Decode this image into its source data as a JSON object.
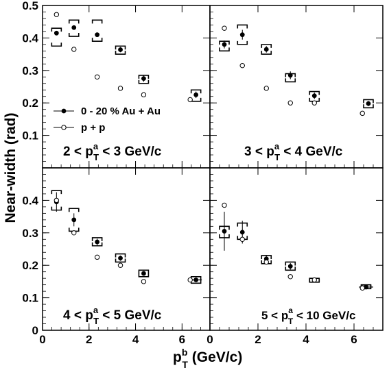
{
  "chart_data": {
    "type": "scatter",
    "layout": "2x2 panels sharing axes",
    "xlabel": {
      "main": "p",
      "sup": "b",
      "sub": "T",
      "rest": " (GeV/c)"
    },
    "ylabel": "Near-width (rad)",
    "xlim": [
      0,
      7.2
    ],
    "ylim": [
      0,
      0.5
    ],
    "x_ticks": [
      0,
      2,
      4,
      6
    ],
    "x_tick_labels": [
      "0",
      "2",
      "4",
      "6"
    ],
    "y_ticks": [
      0,
      0.1,
      0.2,
      0.3,
      0.4,
      0.5
    ],
    "y_tick_labels_top": [
      "0.1",
      "0.2",
      "0.3",
      "0.4",
      "0.5"
    ],
    "y_tick_labels_bottom": [
      "0",
      "0.1",
      "0.2",
      "0.3",
      "0.4"
    ],
    "legend": {
      "placement": "top-left panel, middle-left",
      "entries": [
        {
          "label": "0 - 20 % Au + Au",
          "marker": "filled-circle"
        },
        {
          "label": "p + p",
          "marker": "open-circle"
        }
      ]
    },
    "panels": [
      {
        "label": {
          "pre": "2 < p",
          "sup": "a",
          "sub": "T",
          "post": " < 3 GeV/c"
        },
        "auau": [
          {
            "x": 0.6,
            "y": 0.415,
            "syst": [
              0.375,
              0.43
            ],
            "xerr": 0,
            "yerr": 0
          },
          {
            "x": 1.35,
            "y": 0.432,
            "syst": [
              0.405,
              0.455
            ],
            "xerr": 0,
            "yerr": 0
          },
          {
            "x": 2.35,
            "y": 0.41,
            "syst": [
              0.39,
              0.455
            ],
            "xerr": 0,
            "yerr": 0
          },
          {
            "x": 3.35,
            "y": 0.364,
            "syst": [
              0.35,
              0.375
            ],
            "xerr": 0,
            "yerr": 0.008
          },
          {
            "x": 4.35,
            "y": 0.275,
            "syst": [
              0.26,
              0.285
            ],
            "xerr": 0,
            "yerr": 0.01
          },
          {
            "x": 6.6,
            "y": 0.225,
            "syst": [
              0.205,
              0.24
            ],
            "xerr": 0,
            "yerr": 0.01
          }
        ],
        "pp": [
          {
            "x": 0.6,
            "y": 0.472
          },
          {
            "x": 1.35,
            "y": 0.365
          },
          {
            "x": 2.35,
            "y": 0.28
          },
          {
            "x": 3.35,
            "y": 0.245
          },
          {
            "x": 4.35,
            "y": 0.225
          },
          {
            "x": 6.35,
            "y": 0.21
          }
        ]
      },
      {
        "label": {
          "pre": "3 < p",
          "sup": "a",
          "sub": "T",
          "post": " < 4 GeV/c"
        },
        "auau": [
          {
            "x": 0.6,
            "y": 0.38,
            "syst": [
              0.36,
              0.39
            ],
            "xerr": 0,
            "yerr": 0.012
          },
          {
            "x": 1.35,
            "y": 0.41,
            "syst": [
              0.38,
              0.44
            ],
            "xerr": 0,
            "yerr": 0.015
          },
          {
            "x": 2.35,
            "y": 0.365,
            "syst": [
              0.35,
              0.38
            ],
            "xerr": 0,
            "yerr": 0.01
          },
          {
            "x": 3.35,
            "y": 0.285,
            "syst": [
              0.265,
              0.29
            ],
            "xerr": 0,
            "yerr": 0.012
          },
          {
            "x": 4.35,
            "y": 0.222,
            "syst": [
              0.205,
              0.235
            ],
            "xerr": 0,
            "yerr": 0.01
          },
          {
            "x": 6.6,
            "y": 0.198,
            "syst": [
              0.185,
              0.21
            ],
            "xerr": 0,
            "yerr": 0.008
          }
        ],
        "pp": [
          {
            "x": 0.6,
            "y": 0.43
          },
          {
            "x": 1.35,
            "y": 0.315
          },
          {
            "x": 2.35,
            "y": 0.245
          },
          {
            "x": 3.35,
            "y": 0.2
          },
          {
            "x": 4.35,
            "y": 0.2
          },
          {
            "x": 6.35,
            "y": 0.168
          }
        ]
      },
      {
        "label": {
          "pre": "4 < p",
          "sup": "a",
          "sub": "T",
          "post": " < 5 GeV/c"
        },
        "auau": [
          {
            "x": 0.6,
            "y": 0.395,
            "syst": [
              0.37,
              0.43
            ],
            "xerr": 0,
            "yerr": 0.03
          },
          {
            "x": 1.35,
            "y": 0.34,
            "syst": [
              0.305,
              0.375
            ],
            "xerr": 0,
            "yerr": 0.02
          },
          {
            "x": 2.35,
            "y": 0.272,
            "syst": [
              0.26,
              0.285
            ],
            "xerr": 0,
            "yerr": 0.01
          },
          {
            "x": 3.35,
            "y": 0.222,
            "syst": [
              0.21,
              0.235
            ],
            "xerr": 0,
            "yerr": 0.008
          },
          {
            "x": 4.35,
            "y": 0.175,
            "syst": [
              0.165,
              0.185
            ],
            "xerr": 0,
            "yerr": 0.005
          },
          {
            "x": 6.6,
            "y": 0.155,
            "syst": [
              0.145,
              0.165
            ],
            "xerr": 0.25,
            "yerr": 0
          }
        ],
        "pp": [
          {
            "x": 0.6,
            "y": 0.4
          },
          {
            "x": 1.35,
            "y": 0.3
          },
          {
            "x": 2.35,
            "y": 0.225
          },
          {
            "x": 3.35,
            "y": 0.2
          },
          {
            "x": 4.35,
            "y": 0.15
          },
          {
            "x": 6.35,
            "y": 0.155
          }
        ]
      },
      {
        "label": {
          "pre": "5 < p",
          "sup": "a",
          "sub": "T",
          "post": " < 10 GeV/c"
        },
        "auau": [
          {
            "x": 0.6,
            "y": 0.305,
            "syst": [
              0.285,
              0.32
            ],
            "xerr": 0,
            "yerr": 0.06
          },
          {
            "x": 1.35,
            "y": 0.302,
            "syst": [
              0.28,
              0.33
            ],
            "xerr": 0,
            "yerr": 0.035
          },
          {
            "x": 2.35,
            "y": 0.22,
            "syst": [
              0.205,
              0.23
            ],
            "xerr": 0,
            "yerr": 0.012
          },
          {
            "x": 3.35,
            "y": 0.197,
            "syst": [
              0.185,
              0.21
            ],
            "xerr": 0,
            "yerr": 0.01
          },
          {
            "x": 4.35,
            "y": 0.155,
            "syst": [
              0.148,
              0.16
            ],
            "xerr": 0,
            "yerr": 0.005
          },
          {
            "x": 6.5,
            "y": 0.133,
            "syst": [
              0.128,
              0.14
            ],
            "xerr": 0.3,
            "yerr": 0
          }
        ],
        "pp": [
          {
            "x": 0.6,
            "y": 0.385
          },
          {
            "x": 1.35,
            "y": 0.28
          },
          {
            "x": 2.35,
            "y": 0.21
          },
          {
            "x": 3.35,
            "y": 0.165
          },
          {
            "x": 4.35,
            "y": 0.155
          },
          {
            "x": 6.35,
            "y": 0.13
          }
        ]
      }
    ]
  }
}
